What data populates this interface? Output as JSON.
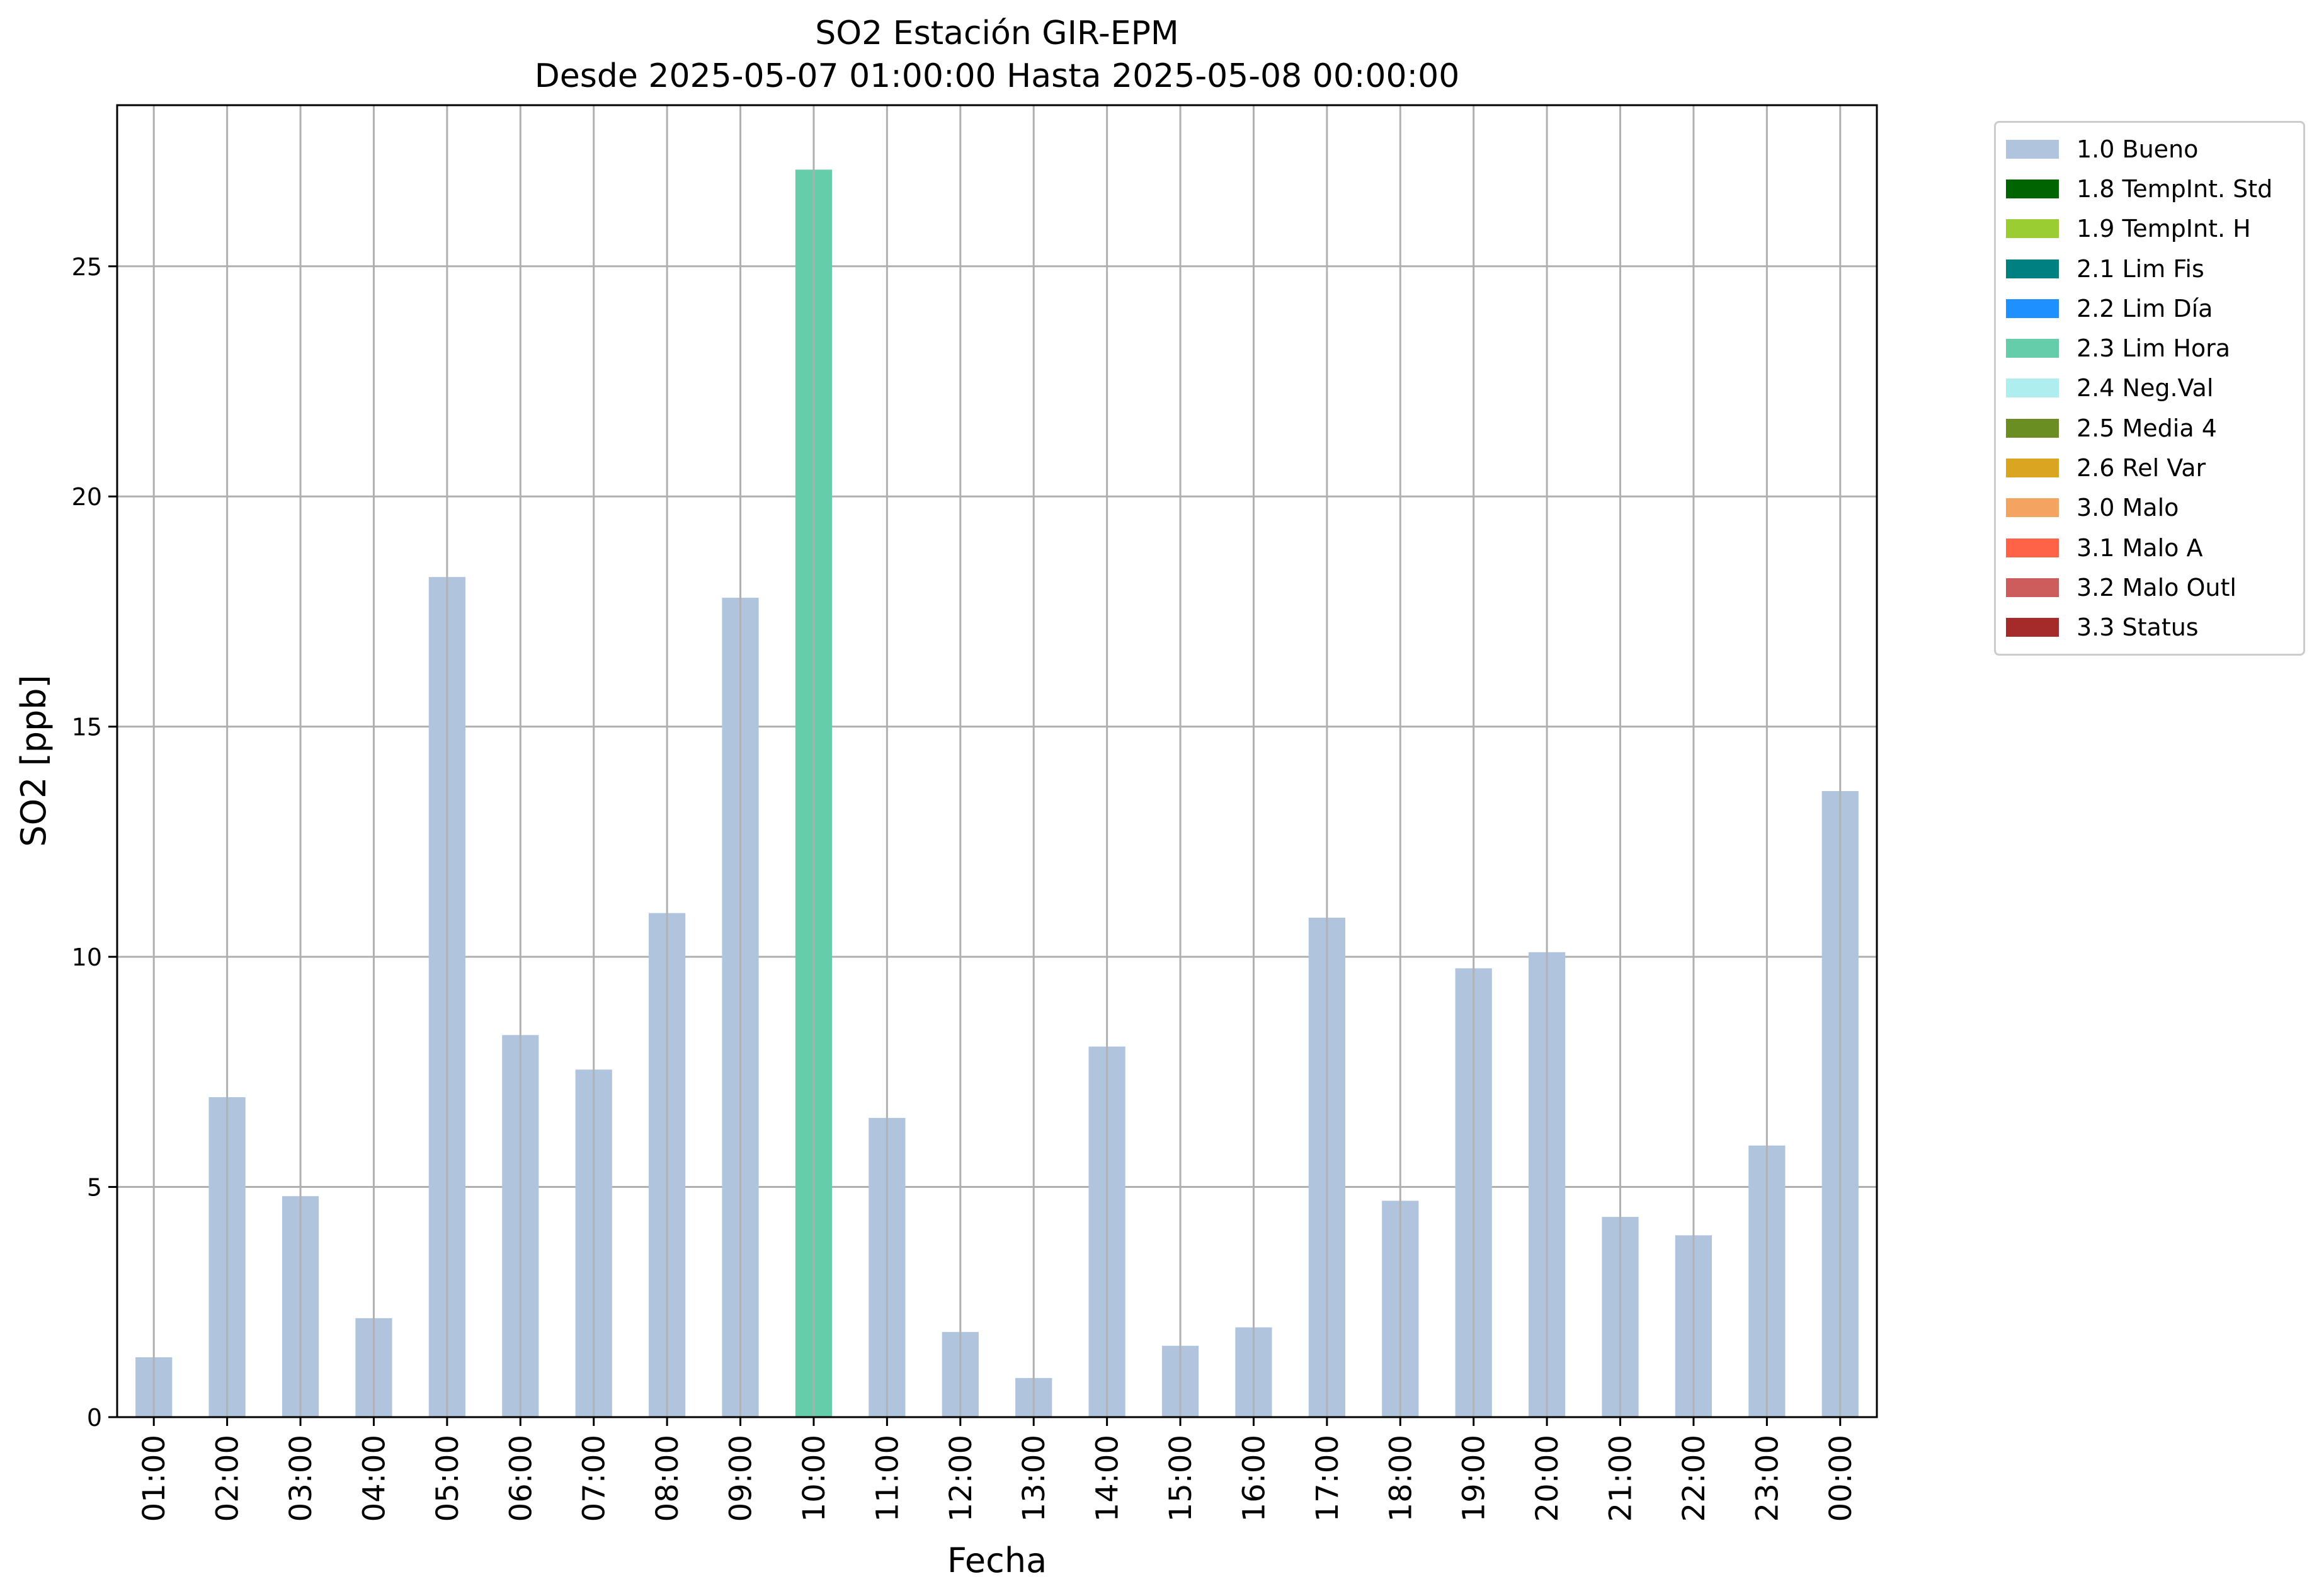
{
  "chart_data": {
    "type": "bar",
    "title": "SO2 Estación GIR-EPM",
    "subtitle": "Desde 2025-05-07 01:00:00 Hasta 2025-05-08 00:00:00",
    "xlabel": "Fecha",
    "ylabel": "SO2 [ppb]",
    "ylim": [
      0,
      28.5
    ],
    "yticks": [
      0,
      5,
      10,
      15,
      20,
      25
    ],
    "grid": true,
    "legend_position": "outside-right",
    "categories": [
      "01:00",
      "02:00",
      "03:00",
      "04:00",
      "05:00",
      "06:00",
      "07:00",
      "08:00",
      "09:00",
      "10:00",
      "11:00",
      "12:00",
      "13:00",
      "14:00",
      "15:00",
      "16:00",
      "17:00",
      "18:00",
      "19:00",
      "20:00",
      "21:00",
      "22:00",
      "23:00",
      "00:00"
    ],
    "values": [
      1.3,
      6.95,
      4.8,
      2.15,
      18.25,
      8.3,
      7.55,
      10.95,
      17.8,
      27.1,
      6.5,
      1.85,
      0.85,
      8.05,
      1.55,
      1.95,
      10.85,
      4.7,
      9.75,
      10.1,
      4.35,
      3.95,
      5.9,
      13.6
    ],
    "flags": [
      "1.0 Bueno",
      "1.0 Bueno",
      "1.0 Bueno",
      "1.0 Bueno",
      "1.0 Bueno",
      "1.0 Bueno",
      "1.0 Bueno",
      "1.0 Bueno",
      "1.0 Bueno",
      "2.3 Lim Hora",
      "1.0 Bueno",
      "1.0 Bueno",
      "1.0 Bueno",
      "1.0 Bueno",
      "1.0 Bueno",
      "1.0 Bueno",
      "1.0 Bueno",
      "1.0 Bueno",
      "1.0 Bueno",
      "1.0 Bueno",
      "1.0 Bueno",
      "1.0 Bueno",
      "1.0 Bueno",
      "1.0 Bueno"
    ],
    "legend": [
      {
        "label": "1.0 Bueno",
        "color": "#b0c4de"
      },
      {
        "label": "1.8 TempInt. Std",
        "color": "#006400"
      },
      {
        "label": "1.9 TempInt. H",
        "color": "#9acd32"
      },
      {
        "label": "2.1 Lim Fis",
        "color": "#008080"
      },
      {
        "label": "2.2 Lim Día",
        "color": "#1e90ff"
      },
      {
        "label": "2.3 Lim Hora",
        "color": "#66cdaa"
      },
      {
        "label": "2.4 Neg.Val",
        "color": "#afeeee"
      },
      {
        "label": "2.5 Media 4",
        "color": "#6b8e23"
      },
      {
        "label": "2.6 Rel Var",
        "color": "#daa520"
      },
      {
        "label": "3.0 Malo",
        "color": "#f4a460"
      },
      {
        "label": "3.1 Malo A",
        "color": "#ff6347"
      },
      {
        "label": "3.2 Malo Outl",
        "color": "#cd5c5c"
      },
      {
        "label": "3.3 Status",
        "color": "#a52a2a"
      }
    ]
  }
}
